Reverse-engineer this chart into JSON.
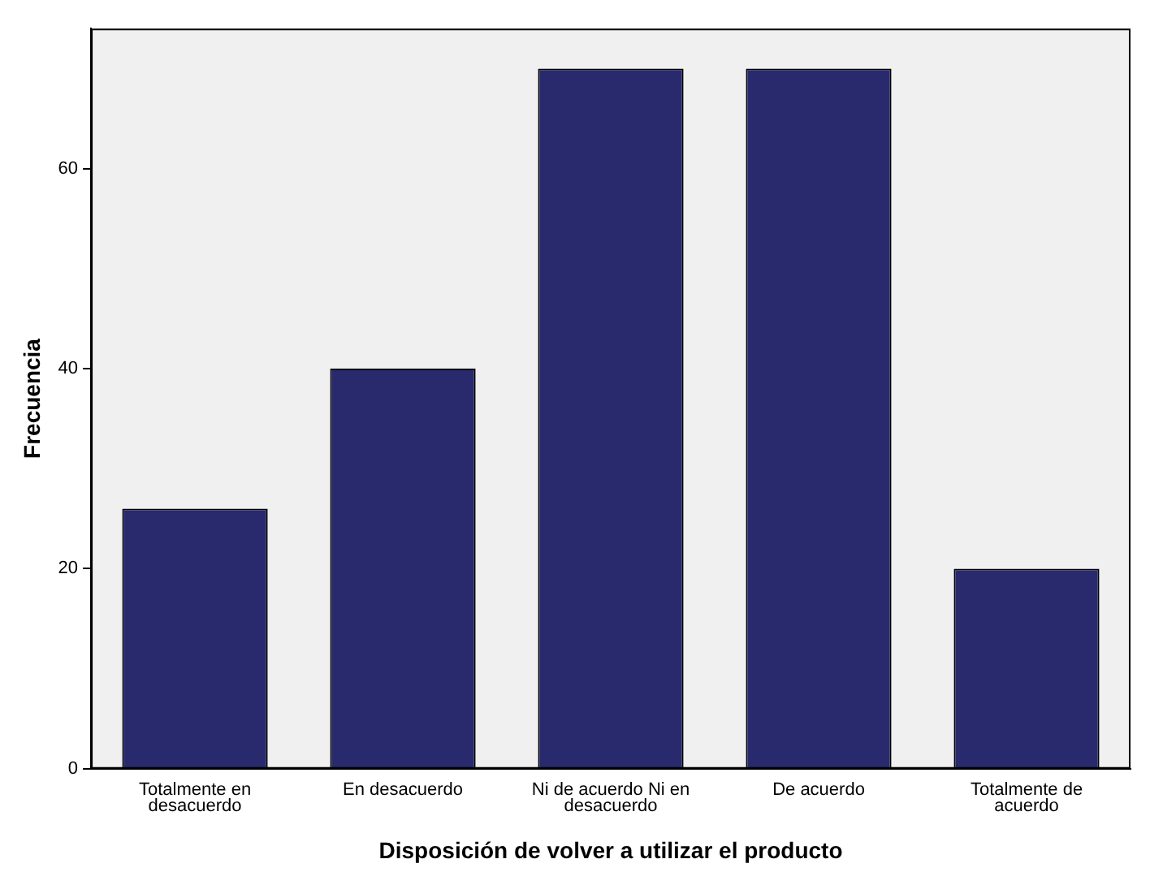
{
  "chart_data": {
    "type": "bar",
    "xlabel": "Disposición de volver a utilizar el producto",
    "ylabel": "Frecuencia",
    "categories": [
      "Totalmente en desacuerdo",
      "En desacuerdo",
      "Ni de acuerdo Ni en desacuerdo",
      "De acuerdo",
      "Totalmente de acuerdo"
    ],
    "values": [
      26,
      40,
      70,
      70,
      20
    ],
    "color": "#29296e",
    "ylim": [
      0,
      74
    ],
    "yticks": [
      0,
      20,
      40,
      60
    ],
    "grid": false,
    "legend": false
  }
}
